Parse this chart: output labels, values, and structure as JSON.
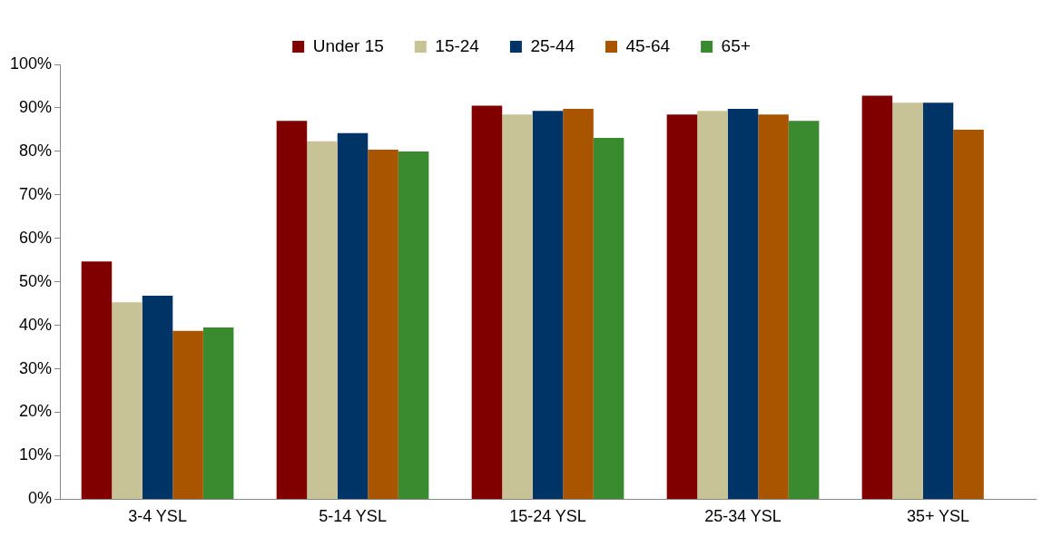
{
  "chart_data": {
    "type": "bar",
    "categories": [
      "3-4 YSL",
      "5-14 YSL",
      "15-24 YSL",
      "25-34 YSL",
      "35+ YSL"
    ],
    "series": [
      {
        "name": "Under 15",
        "color": "#800000",
        "values": [
          54.7,
          87.0,
          90.5,
          88.5,
          92.8
        ]
      },
      {
        "name": "15-24",
        "color": "#c8c396",
        "values": [
          45.3,
          82.3,
          88.5,
          89.3,
          91.2
        ]
      },
      {
        "name": "25-44",
        "color": "#003366",
        "values": [
          46.8,
          84.2,
          89.3,
          89.8,
          91.2
        ]
      },
      {
        "name": "45-64",
        "color": "#a95500",
        "values": [
          38.7,
          80.4,
          89.8,
          88.5,
          85.0
        ]
      },
      {
        "name": "65+",
        "color": "#3a8a30",
        "values": [
          39.5,
          80.0,
          83.1,
          87.0,
          null
        ]
      }
    ],
    "ylim": [
      0,
      100
    ],
    "yticks": [
      {
        "value": 0,
        "label": "0%"
      },
      {
        "value": 10,
        "label": "10%"
      },
      {
        "value": 20,
        "label": "20%"
      },
      {
        "value": 30,
        "label": "30%"
      },
      {
        "value": 40,
        "label": "40%"
      },
      {
        "value": 50,
        "label": "50%"
      },
      {
        "value": 60,
        "label": "60%"
      },
      {
        "value": 70,
        "label": "70%"
      },
      {
        "value": 80,
        "label": "80%"
      },
      {
        "value": 90,
        "label": "90%"
      },
      {
        "value": 100,
        "label": "100%"
      }
    ],
    "grid": false,
    "legend": "top"
  }
}
